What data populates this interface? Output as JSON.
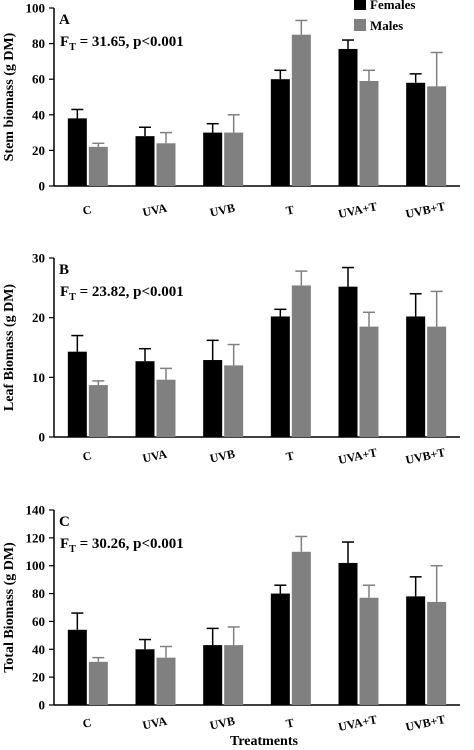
{
  "colors": {
    "females": "#000000",
    "males": "#808080",
    "axis": "#000000",
    "background": "#ffffff"
  },
  "legend": {
    "females": "Females",
    "males": "Males",
    "placement": "top-right"
  },
  "xlabel": "Treatments",
  "chart_data": [
    {
      "type": "bar",
      "panel": "A",
      "ylabel": "Stem biomass (g DM)",
      "stat_prefix": "F",
      "stat_sub": "T",
      "stat_rest": " = 31.65, p<0.001",
      "categories": [
        "C",
        "UVA",
        "UVB",
        "T",
        "UVA+T",
        "UVB+T"
      ],
      "ylim": [
        0,
        100
      ],
      "yticks": [
        0,
        20,
        40,
        60,
        80,
        100
      ],
      "series": [
        {
          "name": "Females",
          "values": [
            38,
            28,
            30,
            60,
            77,
            58
          ],
          "errors": [
            5,
            5,
            5,
            5,
            5,
            5
          ]
        },
        {
          "name": "Males",
          "values": [
            22,
            24,
            30,
            85,
            59,
            56
          ],
          "errors": [
            2,
            6,
            10,
            8,
            6,
            19
          ]
        }
      ],
      "grid": false
    },
    {
      "type": "bar",
      "panel": "B",
      "ylabel": "Leaf Biomass (g DM)",
      "stat_prefix": "F",
      "stat_sub": "T",
      "stat_rest": " = 23.82, p<0.001",
      "categories": [
        "C",
        "UVA",
        "UVB",
        "T",
        "UVA+T",
        "UVB+T"
      ],
      "ylim": [
        0,
        30
      ],
      "yticks": [
        0,
        10,
        20,
        30
      ],
      "series": [
        {
          "name": "Females",
          "values": [
            14.3,
            12.7,
            12.9,
            20.2,
            25.2,
            20.2
          ],
          "errors": [
            2.7,
            2.1,
            3.3,
            1.2,
            3.2,
            3.8
          ]
        },
        {
          "name": "Males",
          "values": [
            8.7,
            9.6,
            12,
            25.4,
            18.5,
            18.5
          ],
          "errors": [
            0.7,
            1.9,
            3.5,
            2.4,
            2.4,
            5.9
          ]
        }
      ],
      "grid": false
    },
    {
      "type": "bar",
      "panel": "C",
      "ylabel": "Total Biomass (g DM)",
      "stat_prefix": "F",
      "stat_sub": "T",
      "stat_rest": " = 30.26, p<0.001",
      "categories": [
        "C",
        "UVA",
        "UVB",
        "T",
        "UVA+T",
        "UVB+T"
      ],
      "ylim": [
        0,
        140
      ],
      "yticks": [
        0,
        20,
        40,
        60,
        80,
        100,
        120,
        140
      ],
      "series": [
        {
          "name": "Females",
          "values": [
            54,
            40,
            43,
            80,
            102,
            78
          ],
          "errors": [
            12,
            7,
            12,
            6,
            15,
            14
          ]
        },
        {
          "name": "Males",
          "values": [
            31,
            34,
            43,
            110,
            77,
            74
          ],
          "errors": [
            3,
            8,
            13,
            11,
            9,
            26
          ]
        }
      ],
      "grid": false
    }
  ]
}
